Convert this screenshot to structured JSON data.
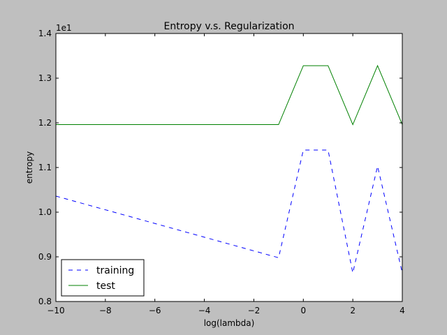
{
  "chart_data": {
    "type": "line",
    "title": "Entropy v.s. Regularization",
    "xlabel": "log(lambda)",
    "ylabel": "entropy",
    "offset_text": "1e1",
    "xlim": [
      -10,
      4
    ],
    "ylim": [
      0.8,
      1.4
    ],
    "x_ticks": [
      -10,
      -8,
      -6,
      -4,
      -2,
      0,
      2,
      4
    ],
    "x_tick_labels": [
      "−10",
      "−8",
      "−6",
      "−4",
      "−2",
      "0",
      "2",
      "4"
    ],
    "y_ticks": [
      0.8,
      0.9,
      1.0,
      1.1,
      1.2,
      1.3,
      1.4
    ],
    "y_tick_labels": [
      "0.8",
      "0.9",
      "1.0",
      "1.1",
      "1.2",
      "1.3",
      "1.4"
    ],
    "grid": false,
    "legend_position": "lower-left",
    "series": [
      {
        "name": "training",
        "color": "#0000ff",
        "style": "dashed",
        "x": [
          -10,
          -1,
          0,
          1,
          2,
          3,
          4
        ],
        "values": [
          1.036,
          0.898,
          1.139,
          1.139,
          0.864,
          1.103,
          0.864
        ]
      },
      {
        "name": "test",
        "color": "#008000",
        "style": "solid",
        "x": [
          -10,
          -1,
          0,
          1,
          2,
          3,
          4
        ],
        "values": [
          1.196,
          1.196,
          1.328,
          1.328,
          1.196,
          1.328,
          1.196
        ]
      }
    ]
  }
}
